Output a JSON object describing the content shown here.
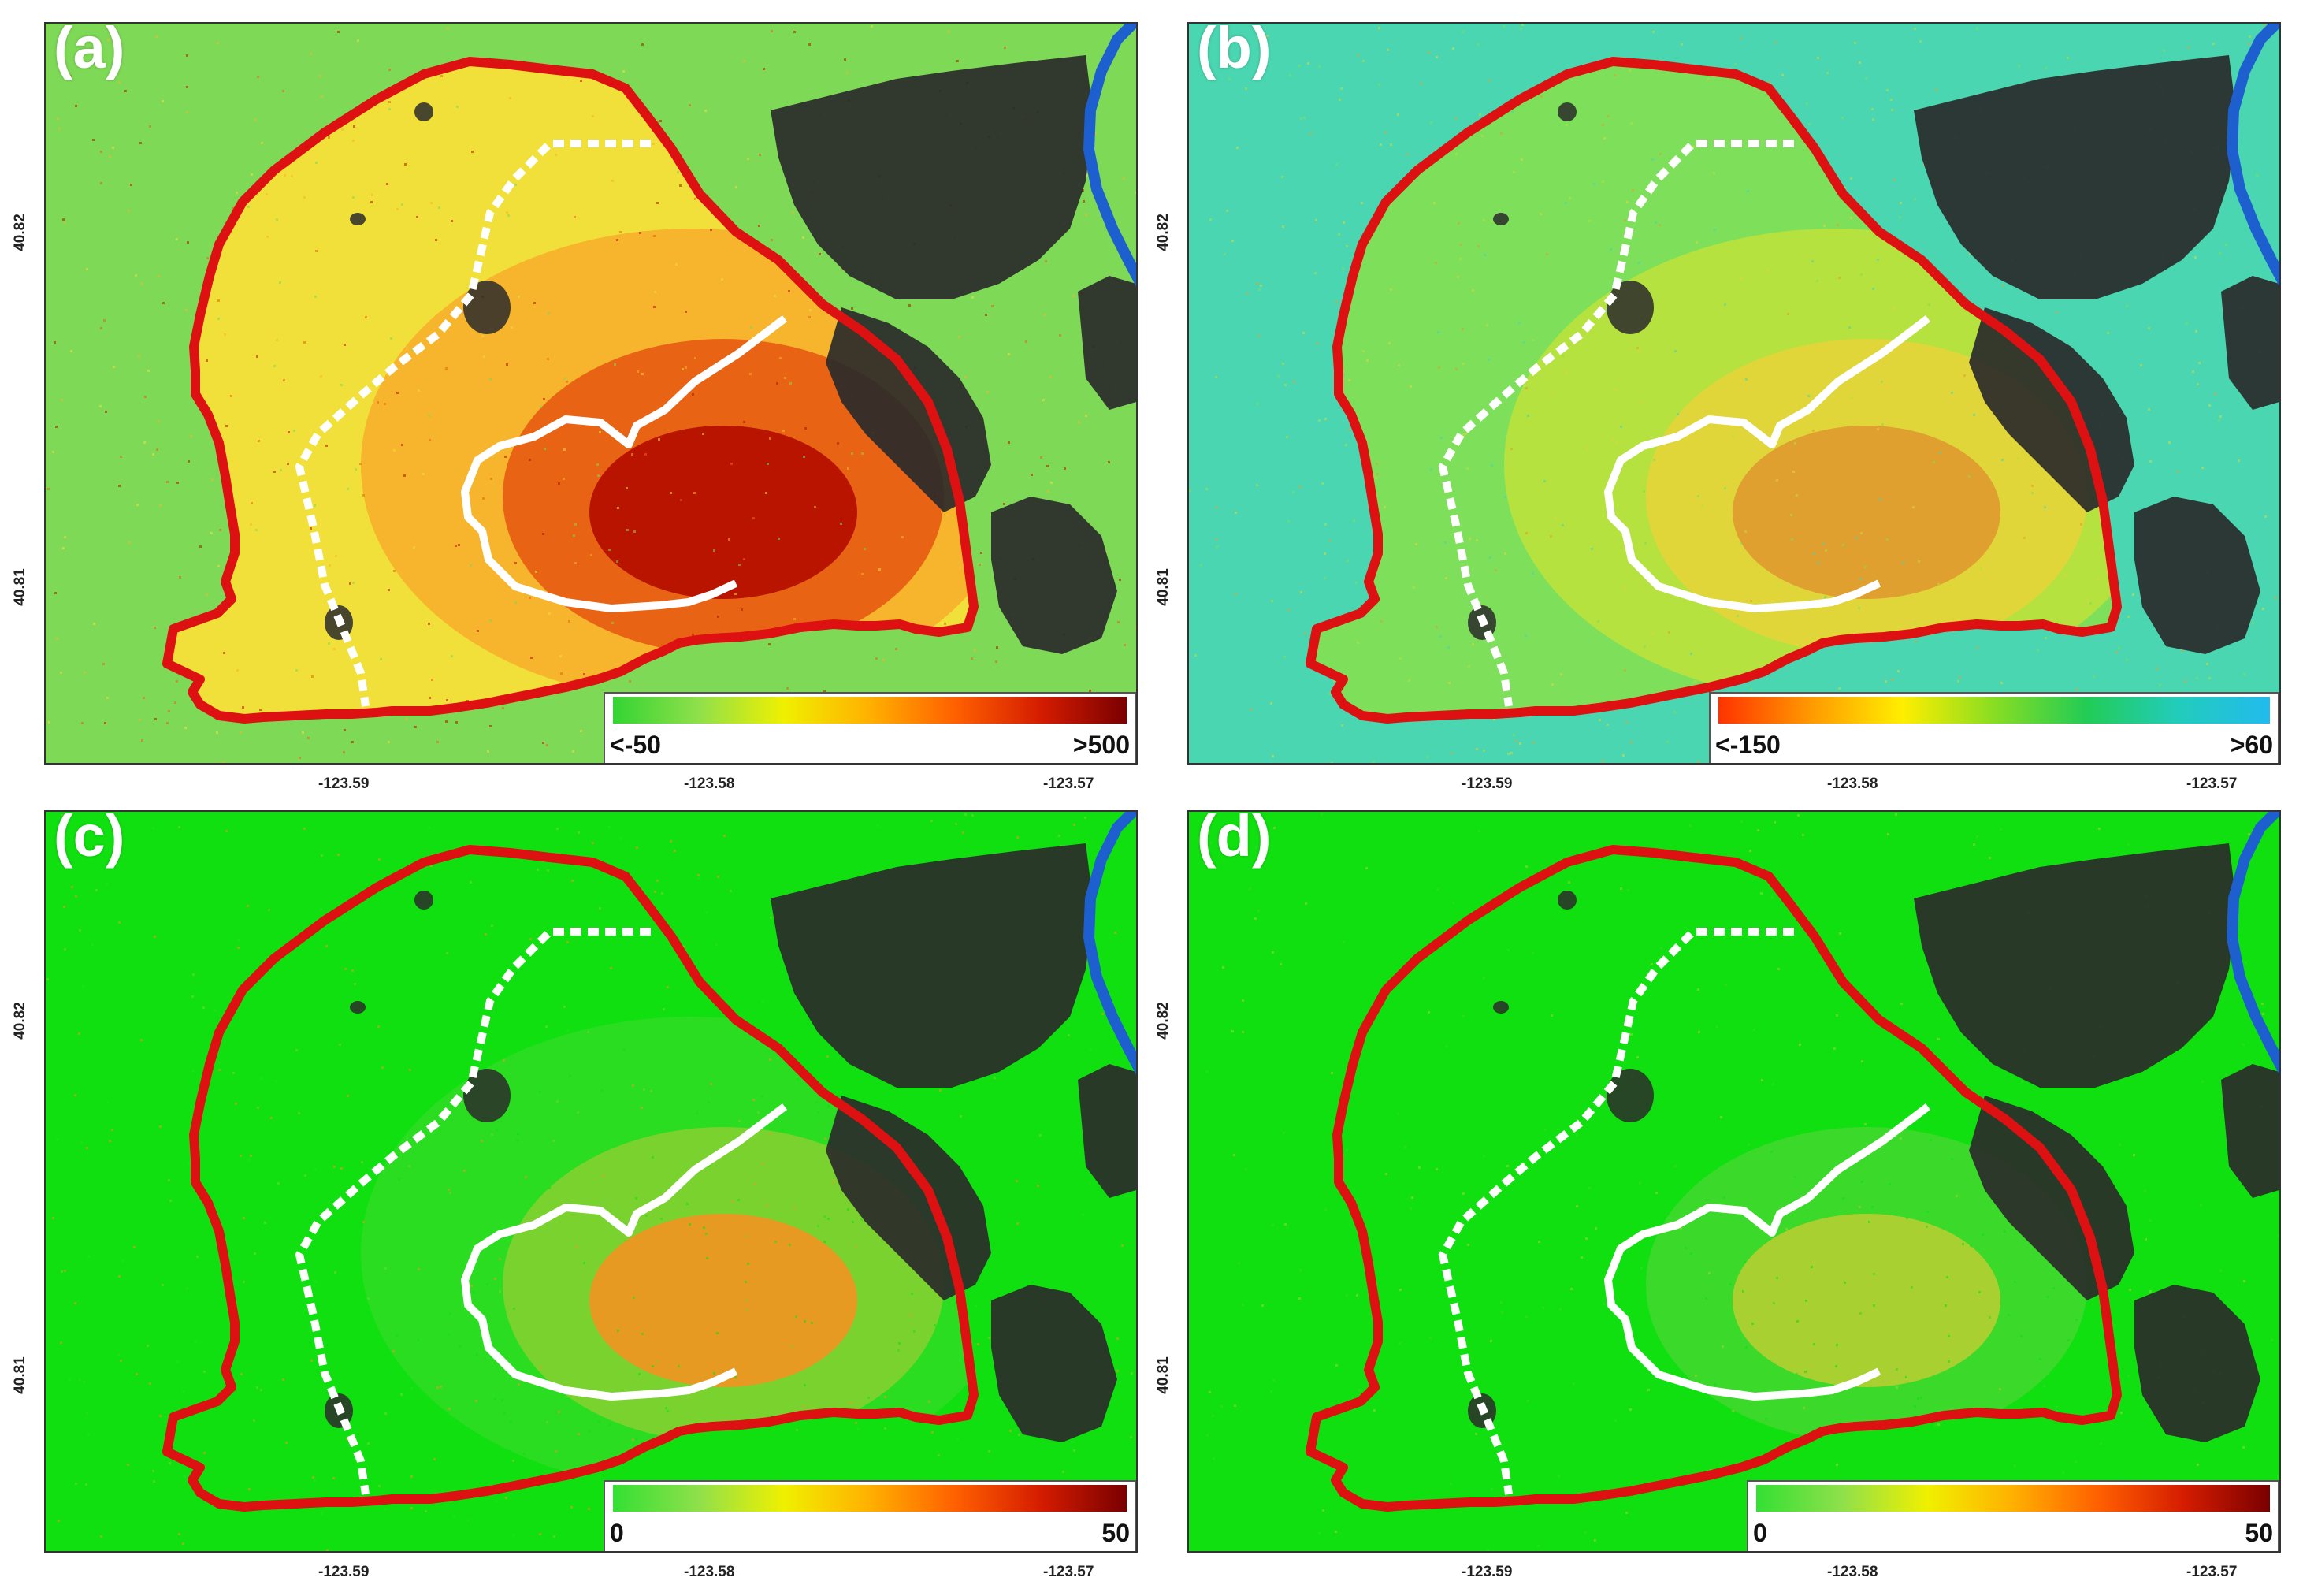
{
  "panels": [
    {
      "id": "a",
      "label": "(a)",
      "lat_labels": [
        "40.82",
        "40.81"
      ],
      "lon_labels": [
        "-123.59",
        "-123.58",
        "-123.57"
      ],
      "colorbar": {
        "min_label": "<-50",
        "max_label": ">500",
        "colors": [
          "#33d433",
          "#8fe04a",
          "#f0f000",
          "#ffb000",
          "#ff6000",
          "#d41c00",
          "#7a0000"
        ]
      },
      "fill_colors": [
        "#7ed957",
        "#f2e03a",
        "#f6b52c",
        "#e86414",
        "#b81400"
      ]
    },
    {
      "id": "b",
      "label": "(b)",
      "lat_labels": [
        "40.82",
        "40.81"
      ],
      "lon_labels": [
        "-123.59",
        "-123.58",
        "-123.57"
      ],
      "colorbar": {
        "min_label": "<-150",
        "max_label": ">60",
        "colors": [
          "#ff3300",
          "#ff9900",
          "#ffee00",
          "#88dd22",
          "#22cc55",
          "#22ccbb",
          "#22bbee"
        ]
      },
      "fill_colors": [
        "#49d6b0",
        "#7ee05a",
        "#b5e23e",
        "#e0d63a",
        "#e0a030"
      ]
    },
    {
      "id": "c",
      "label": "(c)",
      "lat_labels": [
        "40.82",
        "40.81"
      ],
      "lon_labels": [
        "-123.59",
        "-123.58",
        "-123.57"
      ],
      "colorbar": {
        "min_label": "0",
        "max_label": "50",
        "colors": [
          "#33e033",
          "#8fe04a",
          "#f0f000",
          "#ffb000",
          "#ff6000",
          "#d41c00",
          "#7a0000"
        ]
      },
      "fill_colors": [
        "#10e010",
        "#10e010",
        "#2add20",
        "#7ad22e",
        "#e69a22"
      ]
    },
    {
      "id": "d",
      "label": "(d)",
      "lat_labels": [
        "40.82",
        "40.81"
      ],
      "lon_labels": [
        "-123.59",
        "-123.58",
        "-123.57"
      ],
      "colorbar": {
        "min_label": "0",
        "max_label": "50",
        "colors": [
          "#33e033",
          "#8fe04a",
          "#f0f000",
          "#ffb000",
          "#ff6000",
          "#d41c00",
          "#7a0000"
        ]
      },
      "fill_colors": [
        "#10e010",
        "#10e010",
        "#10e010",
        "#3bd92a",
        "#a8d030"
      ]
    }
  ],
  "outline_colors": {
    "outer_boundary": "#dd1111",
    "inner_boundary": "#ffffff",
    "river": "#1e5fd0",
    "terrain": "#2a2a2a"
  }
}
